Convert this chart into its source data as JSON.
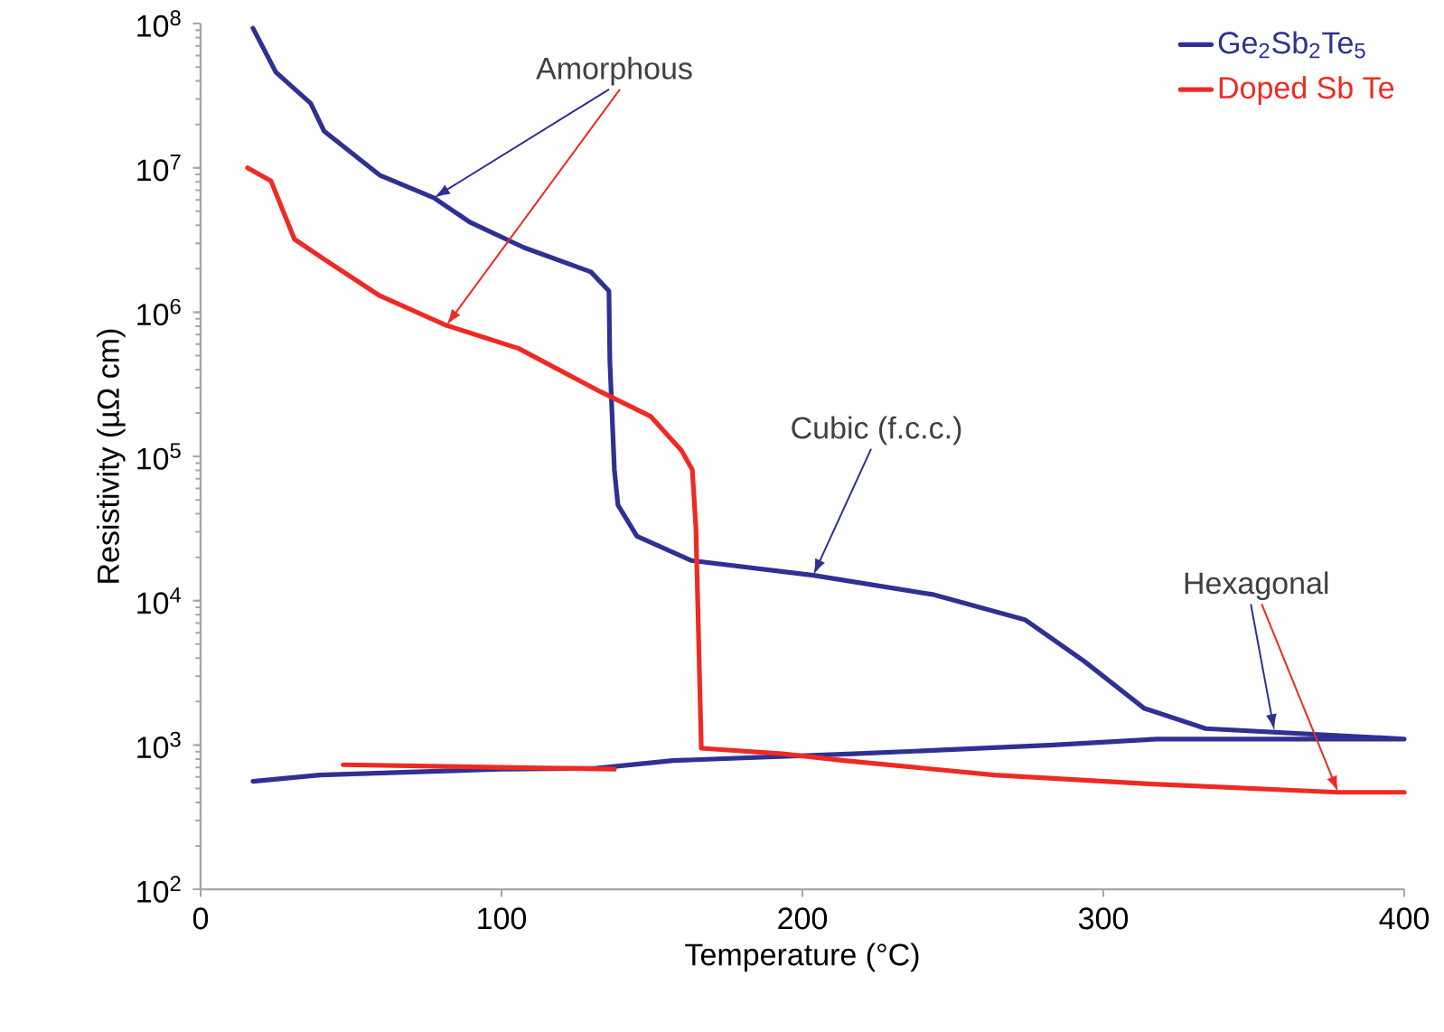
{
  "chart_data": {
    "type": "line",
    "xlabel": "Temperature (°C)",
    "ylabel": "Resistivity (µΩ cm)",
    "series": [
      {
        "name": "Ge$_{2}$Sb$_{2}$Te$_{5}$",
        "color": "#2e3192",
        "x": [
          17.4,
          25,
          36.6,
          41,
          59.5,
          77.5,
          89.5,
          107.5,
          129.7,
          135.7,
          136,
          137.5,
          138.7,
          145,
          163,
          203.6,
          243.8,
          273.9,
          293.7,
          313.5,
          334,
          400,
          317.7,
          283.5,
          250,
          217,
          157,
          131.5,
          99.7,
          69.7,
          39.6,
          17.4
        ],
        "values": [
          93000000,
          46000000,
          28000000,
          18000000,
          8900000,
          6200000,
          4200000,
          2800000,
          1900000,
          1400000,
          460000,
          81000,
          46000,
          28000,
          19000,
          15000,
          11000,
          7400,
          3800,
          1800,
          1300,
          1100,
          1100,
          1000,
          930,
          870,
          780,
          690,
          680,
          650,
          620,
          560
        ]
      },
      {
        "name": "Doped Sb Te",
        "color": "#ee2a24",
        "x": [
          15.6,
          23.4,
          31.2,
          41.4,
          59.5,
          81.7,
          105.7,
          133,
          149.5,
          159.8,
          163.4,
          164.6,
          166.4,
          193.4,
          213.8,
          263.7,
          313.5,
          378,
          400,
          300,
          137.5,
          47.4
        ],
        "values": [
          10000000,
          8100000,
          3200000,
          2300000,
          1300000,
          810000,
          560000,
          280000,
          190000,
          110000,
          81000,
          32000,
          950,
          870,
          780,
          620,
          540,
          470,
          470,
          null,
          680,
          730
        ]
      }
    ],
    "annotations": [
      {
        "text": "Amorphous",
        "x": 77.5,
        "y": 6200000
      },
      {
        "text": "Cubic (f.c.c.)",
        "x": 203.6,
        "y": 15000
      },
      {
        "text": "Hexagonal",
        "x": 356.8,
        "y": 1260
      }
    ],
    "log": "y",
    "legend": "top right",
    "line_style": "solid",
    "marker": "none",
    "grid": false,
    "xlim": [
      0,
      400
    ],
    "xticks": [
      0,
      100,
      200,
      300,
      400
    ],
    "ylim": [
      100,
      100000000
    ],
    "yticks": [
      {
        "value": 100,
        "label": "10$^{2}$"
      },
      {
        "value": 1000,
        "label": "10$^{3}$"
      },
      {
        "value": 10000,
        "label": "10$^{4}$"
      },
      {
        "value": 100000,
        "label": "10$^{5}$"
      },
      {
        "value": 1000000,
        "label": "10$^{6}$"
      },
      {
        "value": 10000000,
        "label": "10$^{7}$"
      },
      {
        "value": 100000000,
        "label": "10$^{8}$"
      }
    ]
  }
}
